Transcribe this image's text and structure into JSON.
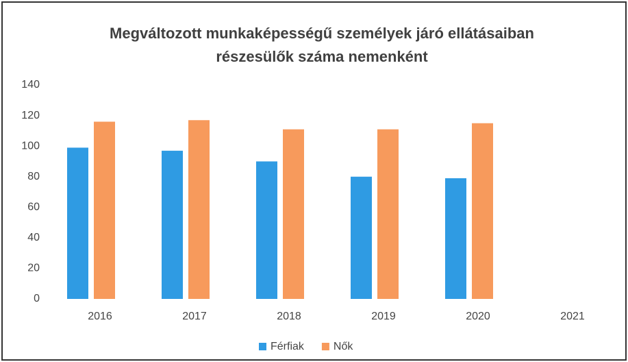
{
  "chart_data": {
    "type": "bar",
    "title": [
      "Megváltozott munkaképességű személyek járó ellátásaiban",
      "részesülők száma nemenként"
    ],
    "categories": [
      "2016",
      "2017",
      "2018",
      "2019",
      "2020",
      "2021"
    ],
    "series": [
      {
        "name": "Férfiak",
        "color": "#2f9be3",
        "values": [
          99,
          97,
          90,
          80,
          79,
          null
        ]
      },
      {
        "name": "Nők",
        "color": "#f79a5c",
        "values": [
          116,
          117,
          111,
          111,
          115,
          null
        ]
      }
    ],
    "ylim": [
      0,
      140
    ],
    "yticks": [
      0,
      20,
      40,
      60,
      80,
      100,
      120,
      140
    ],
    "grid": false,
    "legend": "bottom"
  }
}
